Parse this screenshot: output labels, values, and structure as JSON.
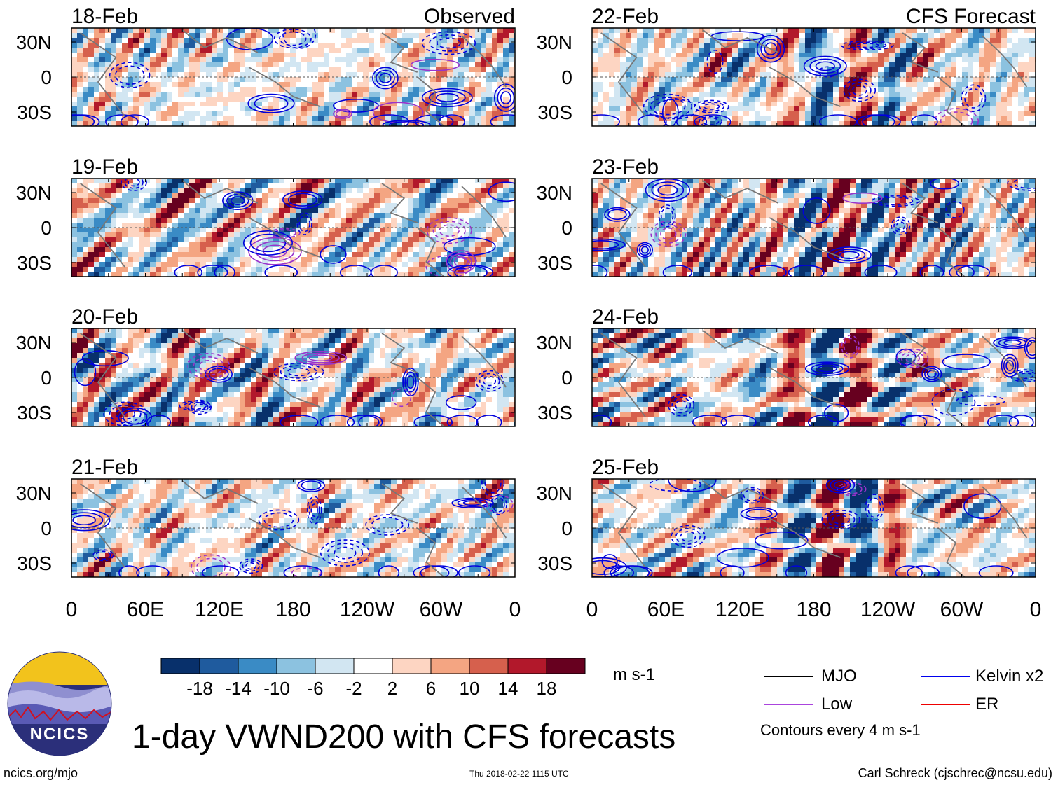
{
  "chart_data": {
    "type": "heatmap",
    "title": "1-day VWND200 with CFS forecasts",
    "variable": "VWND200",
    "units": "m s-1",
    "colorbar": {
      "ticks": [
        "-18",
        "-14",
        "-10",
        "-6",
        "-2",
        "2",
        "6",
        "10",
        "14",
        "18"
      ],
      "colors": [
        "#08306b",
        "#1f5b9e",
        "#3a8bc5",
        "#8cc2e0",
        "#d2e6f2",
        "#ffffff",
        "#fdd5c2",
        "#f4a582",
        "#d6604d",
        "#b2182b",
        "#67001f"
      ]
    },
    "x_ticks": [
      "0",
      "60E",
      "120E",
      "180",
      "120W",
      "60W",
      "0"
    ],
    "y_ticks": [
      "30N",
      "0",
      "30S"
    ],
    "columns": [
      {
        "label": "Observed",
        "panels": [
          "18-Feb",
          "19-Feb",
          "20-Feb",
          "21-Feb"
        ]
      },
      {
        "label": "CFS Forecast",
        "panels": [
          "22-Feb",
          "23-Feb",
          "24-Feb",
          "25-Feb"
        ]
      }
    ],
    "legend": [
      {
        "name": "MJO",
        "color": "#000000"
      },
      {
        "name": "Kelvin x2",
        "color": "#0000ee"
      },
      {
        "name": "Low",
        "color": "#aa44dd"
      },
      {
        "name": "ER",
        "color": "#ee0000"
      }
    ],
    "contour_note": "Contours every 4 m s-1"
  },
  "footer": {
    "site": "ncics.org/mjo",
    "timestamp": "Thu 2018-02-22 1115 UTC",
    "author": "Carl Schreck (cjschrec@ncsu.edu)",
    "logo_text": "NCICS"
  }
}
